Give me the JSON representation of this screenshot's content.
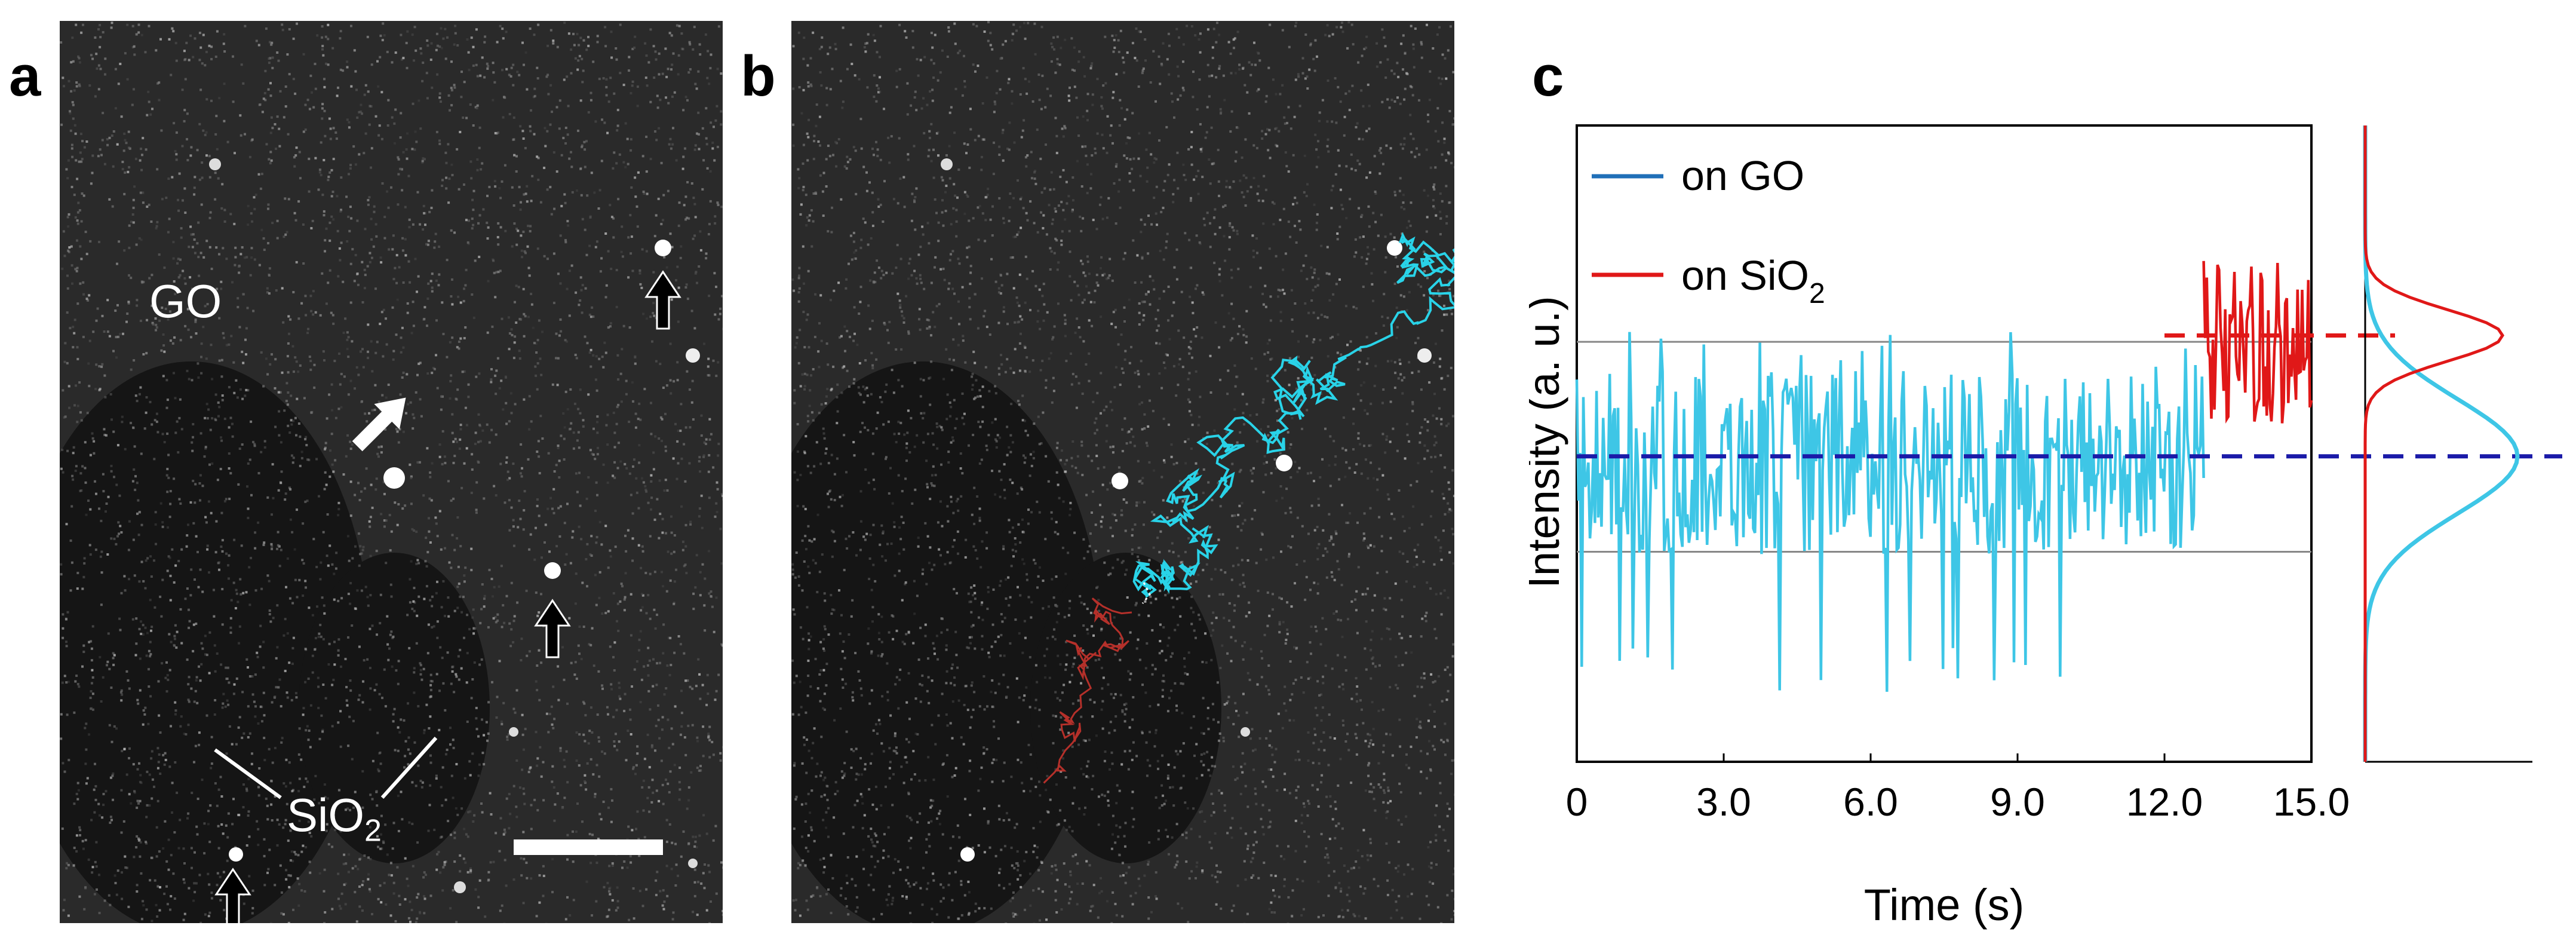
{
  "panels": {
    "a": {
      "letter": "a",
      "labels": {
        "go": "GO",
        "sio2_main": "SiO",
        "sio2_sub": "2"
      }
    },
    "b": {
      "letter": "b"
    },
    "c": {
      "letter": "c"
    }
  },
  "colors": {
    "go": "#3ec6e6",
    "sio2": "#e01818",
    "go_mean_line": "#1a1aa8",
    "sio2_mean_line": "#e01818",
    "legend_go": "#1f6fb8",
    "trajectory_go": "#29d3e8",
    "trajectory_sio2": "#b5302a"
  },
  "chart_data": {
    "type": "line",
    "xlabel": "Time (s)",
    "ylabel": "Intensity (a. u.)",
    "xlim": [
      0,
      15
    ],
    "x_ticks": [
      "0",
      "3.0",
      "6.0",
      "9.0",
      "12.0",
      "15.0"
    ],
    "x_tick_values": [
      0,
      3,
      6,
      9,
      12,
      15
    ],
    "ylim": [
      0,
      100
    ],
    "legend": {
      "placement": "top-left",
      "entries": [
        {
          "label": "on GO",
          "color": "#1f6fb8"
        },
        {
          "label_main": "on SiO",
          "label_sub": "2",
          "color": "#e01818"
        }
      ]
    },
    "reference_lines": [
      {
        "type": "horizontal",
        "value": 66,
        "color": "#888888",
        "style": "solid"
      },
      {
        "type": "horizontal",
        "value": 33,
        "color": "#888888",
        "style": "solid"
      },
      {
        "type": "horizontal",
        "value": 48,
        "color": "#1a1aa8",
        "style": "dashed",
        "series": "on GO mean"
      },
      {
        "type": "horizontal",
        "value": 67,
        "color": "#e01818",
        "style": "dashed",
        "series": "on SiO2 mean"
      }
    ],
    "series": [
      {
        "name": "on GO",
        "color": "#3ec6e6",
        "x_range": [
          0,
          12.8
        ],
        "mean": 47,
        "spread": 9,
        "min": 10,
        "max": 68
      },
      {
        "name": "on SiO2",
        "color": "#e01818",
        "x_range": [
          12.8,
          15
        ],
        "mean": 66,
        "spread": 8,
        "min": 52,
        "max": 83
      }
    ],
    "histogram": {
      "go": {
        "mean": 48,
        "sd": 9,
        "color": "#3ec6e6"
      },
      "sio2": {
        "mean": 67,
        "sd": 4,
        "color": "#e01818"
      }
    }
  }
}
